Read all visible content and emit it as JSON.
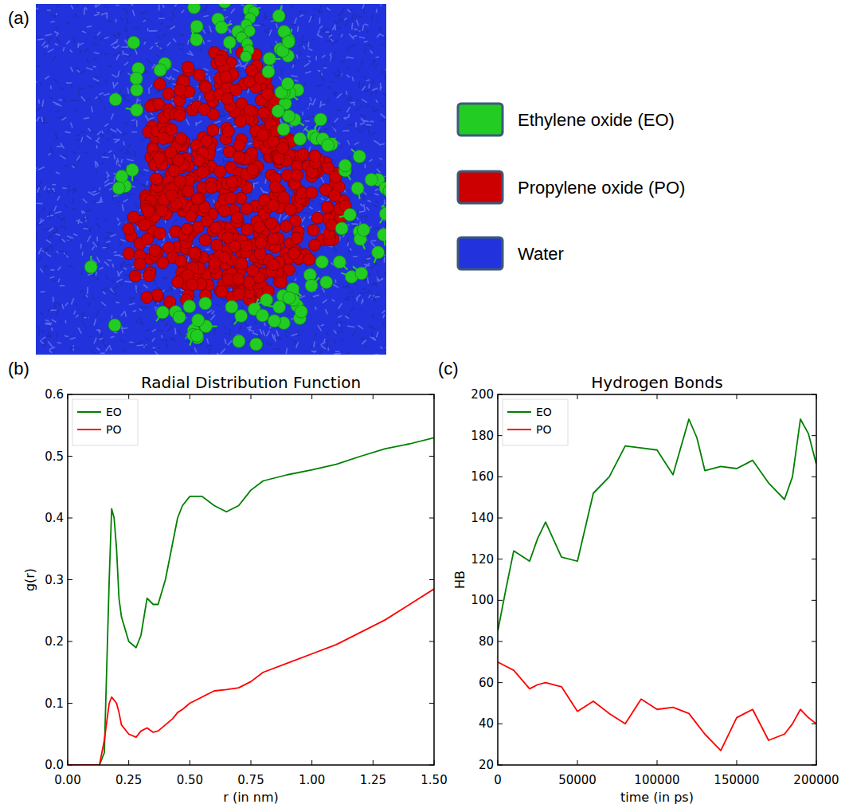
{
  "snapshot": {
    "panel_label": "(a)",
    "legend": [
      {
        "label": "Ethylene oxide (EO)",
        "color": "#22cc22"
      },
      {
        "label": "Propylene oxide (PO)",
        "color": "#cc0000"
      },
      {
        "label": "Water",
        "color": "#2233dd"
      }
    ]
  },
  "chart_data": [
    {
      "type": "line",
      "panel_label": "(b)",
      "title": "Radial Distribution Function",
      "x_label": "r (in nm)",
      "y_label": "g(r)",
      "x": [
        0,
        0.13,
        0.15,
        0.17,
        0.18,
        0.19,
        0.2,
        0.21,
        0.22,
        0.25,
        0.28,
        0.3,
        0.325,
        0.35,
        0.37,
        0.4,
        0.43,
        0.45,
        0.47,
        0.5,
        0.55,
        0.6,
        0.65,
        0.7,
        0.75,
        0.8,
        0.9,
        1.0,
        1.1,
        1.2,
        1.3,
        1.4,
        1.5
      ],
      "series": [
        {
          "name": "EO",
          "color": "#008000",
          "values": [
            0,
            0,
            0.02,
            0.3,
            0.415,
            0.4,
            0.35,
            0.27,
            0.24,
            0.2,
            0.19,
            0.21,
            0.27,
            0.26,
            0.26,
            0.3,
            0.36,
            0.4,
            0.42,
            0.435,
            0.435,
            0.42,
            0.41,
            0.42,
            0.445,
            0.46,
            0.47,
            0.478,
            0.487,
            0.5,
            0.512,
            0.52,
            0.53
          ]
        },
        {
          "name": "PO",
          "color": "#ff0000",
          "values": [
            0,
            0,
            0.04,
            0.1,
            0.11,
            0.105,
            0.1,
            0.085,
            0.065,
            0.05,
            0.045,
            0.055,
            0.06,
            0.053,
            0.055,
            0.065,
            0.075,
            0.085,
            0.09,
            0.1,
            0.11,
            0.12,
            0.122,
            0.125,
            0.135,
            0.15,
            0.165,
            0.18,
            0.195,
            0.215,
            0.235,
            0.26,
            0.285
          ]
        }
      ],
      "xlim": [
        0,
        1.5
      ],
      "xticks": [
        {
          "value": 0,
          "label": "0.00"
        },
        0.25,
        {
          "value": 0.5,
          "label": "0.50"
        },
        0.75,
        {
          "value": 1.0,
          "label": "1.00"
        },
        1.25,
        {
          "value": 1.5,
          "label": "1.50"
        }
      ],
      "ylim": [
        0,
        0.6
      ],
      "yticks": [
        {
          "value": 0,
          "label": "0.0"
        },
        0.1,
        0.2,
        0.3,
        0.4,
        0.5,
        0.6
      ],
      "grid": false,
      "legend": "upper left"
    },
    {
      "type": "line",
      "panel_label": "(c)",
      "title": "Hydrogen Bonds",
      "x_label": "time (in ps)",
      "y_label": "HB",
      "x": [
        0,
        5000,
        10000,
        20000,
        25000,
        30000,
        40000,
        50000,
        60000,
        70000,
        80000,
        90000,
        100000,
        110000,
        120000,
        125000,
        130000,
        140000,
        150000,
        155000,
        160000,
        170000,
        180000,
        185000,
        190000,
        195000,
        200000
      ],
      "series": [
        {
          "name": "EO",
          "color": "#008000",
          "values": [
            85,
            105,
            124,
            119,
            130,
            138,
            121,
            119,
            152,
            160,
            175,
            174,
            173,
            161,
            188,
            179,
            163,
            165,
            164,
            166,
            168,
            157,
            149,
            160,
            188,
            181,
            166
          ]
        },
        {
          "name": "PO",
          "color": "#ff0000",
          "values": [
            70,
            68,
            66,
            57,
            59,
            60,
            58,
            46,
            51,
            45,
            40,
            52,
            47,
            48,
            45,
            40,
            35,
            27,
            43,
            45,
            47,
            32,
            35,
            40,
            47,
            43,
            40
          ]
        }
      ],
      "xlim": [
        0,
        200000
      ],
      "xticks": [
        0,
        50000,
        100000,
        150000,
        200000
      ],
      "ylim": [
        20,
        200
      ],
      "yticks": [
        20,
        40,
        60,
        80,
        100,
        120,
        140,
        160,
        180,
        200
      ],
      "grid": false,
      "legend": "upper left"
    }
  ]
}
